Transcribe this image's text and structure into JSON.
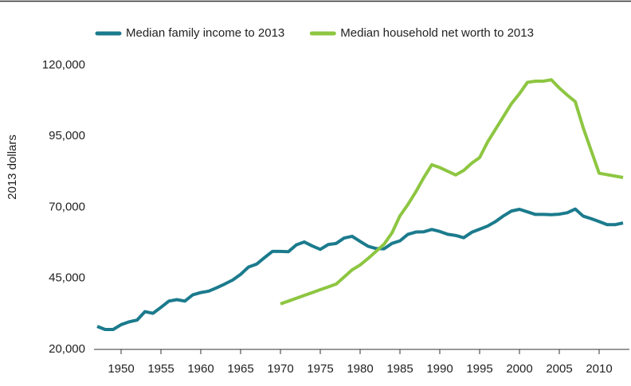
{
  "chart_data": {
    "type": "line",
    "y_label": "2013 dollars",
    "x": [
      1947,
      1948,
      1949,
      1950,
      1951,
      1952,
      1953,
      1954,
      1955,
      1956,
      1957,
      1958,
      1959,
      1960,
      1961,
      1962,
      1963,
      1964,
      1965,
      1966,
      1967,
      1968,
      1969,
      1970,
      1971,
      1972,
      1973,
      1974,
      1975,
      1976,
      1977,
      1978,
      1979,
      1980,
      1981,
      1982,
      1983,
      1984,
      1985,
      1986,
      1987,
      1988,
      1989,
      1990,
      1991,
      1992,
      1993,
      1994,
      1995,
      1996,
      1997,
      1998,
      1999,
      2000,
      2001,
      2002,
      2003,
      2004,
      2005,
      2006,
      2007,
      2008,
      2009,
      2010,
      2011,
      2012,
      2013
    ],
    "series": [
      {
        "name": "Median family income to 2013",
        "color": "#1b7b8d",
        "values": [
          28100,
          27000,
          27000,
          28700,
          29700,
          30300,
          33300,
          32700,
          34800,
          37000,
          37500,
          37000,
          39200,
          40000,
          40500,
          41700,
          43000,
          44400,
          46400,
          49000,
          50000,
          52300,
          54500,
          54500,
          54400,
          56800,
          57800,
          56400,
          55200,
          56900,
          57300,
          59200,
          59800,
          58000,
          56300,
          55500,
          55400,
          57300,
          58200,
          60500,
          61300,
          61400,
          62200,
          61500,
          60500,
          60100,
          59300,
          61200,
          62300,
          63400,
          65000,
          67000,
          68700,
          69300,
          68400,
          67500,
          67500,
          67400,
          67600,
          68100,
          69400,
          66900,
          66000,
          65000,
          63900,
          63900,
          64500
        ]
      },
      {
        "name": "Median household net worth to 2013",
        "color": "#8dc641",
        "values": [
          null,
          null,
          null,
          null,
          null,
          null,
          null,
          null,
          null,
          null,
          null,
          null,
          null,
          null,
          null,
          null,
          null,
          null,
          null,
          null,
          null,
          null,
          null,
          36000,
          37000,
          38000,
          39000,
          40000,
          41000,
          42000,
          43000,
          45500,
          48000,
          49700,
          52000,
          54500,
          57000,
          61000,
          67000,
          71000,
          75500,
          80500,
          85000,
          84000,
          82700,
          81400,
          83000,
          85500,
          87500,
          93000,
          97500,
          102000,
          106500,
          110000,
          114000,
          114400,
          114400,
          114900,
          112000,
          109500,
          107200,
          98000,
          90000,
          82000,
          81500,
          81000,
          80500
        ]
      }
    ],
    "xlim": [
      1946.6,
      2013.8
    ],
    "xticks": [
      1950,
      1955,
      1960,
      1965,
      1970,
      1975,
      1980,
      1985,
      1990,
      1995,
      2000,
      2005,
      2010
    ],
    "ylim": [
      20000,
      120000
    ],
    "yticks": [
      {
        "value": 20000,
        "label": "20,000"
      },
      {
        "value": 45000,
        "label": "45,000"
      },
      {
        "value": 70000,
        "label": "70,000"
      },
      {
        "value": 95000,
        "label": "95,000"
      },
      {
        "value": 120000,
        "label": "120,000"
      }
    ],
    "legend": "top"
  }
}
